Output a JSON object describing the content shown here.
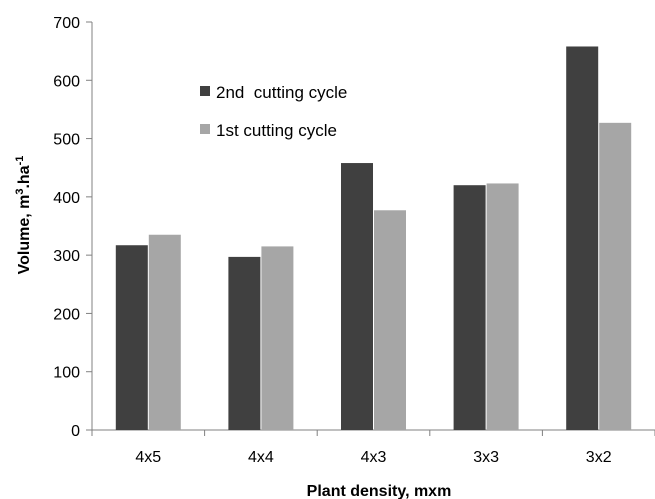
{
  "chart_data": {
    "type": "bar",
    "title": "",
    "xlabel": "Plant density, mxm",
    "ylabel_main": "Volume, m",
    "ylabel_sup1": "3",
    "ylabel_mid": ".ha",
    "ylabel_sup2": "-1",
    "categories": [
      "4x5",
      "4x4",
      "4x3",
      "3x3",
      "3x2"
    ],
    "series": [
      {
        "name": "2nd  cutting cycle",
        "values": [
          317,
          297,
          458,
          420,
          658
        ],
        "color": "#404040"
      },
      {
        "name": "1st cutting cycle",
        "values": [
          335,
          315,
          377,
          423,
          527
        ],
        "color": "#a6a6a6"
      }
    ],
    "ylim": [
      0,
      700
    ],
    "yticks": [
      "0",
      "100",
      "200",
      "300",
      "400",
      "500",
      "600",
      "700"
    ],
    "grid": false,
    "legend_position": "top-left inside plot"
  }
}
